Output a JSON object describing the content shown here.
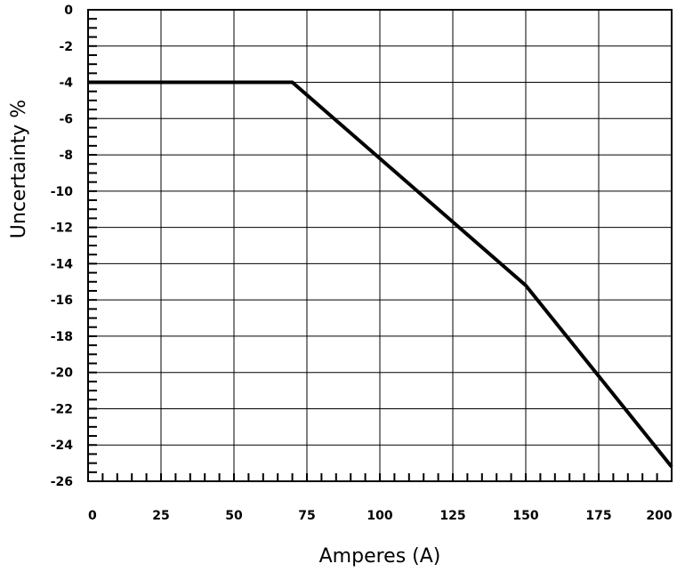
{
  "chart_data": {
    "type": "line",
    "xlabel": "Amperes (A)",
    "ylabel": "Uncertainty %",
    "xlim": [
      0,
      200
    ],
    "ylim": [
      -26,
      0
    ],
    "xticks": [
      0,
      25,
      50,
      75,
      100,
      125,
      150,
      175,
      200
    ],
    "yticks": [
      0,
      -2,
      -4,
      -6,
      -8,
      -10,
      -12,
      -14,
      -16,
      -18,
      -20,
      -22,
      -24,
      -26
    ],
    "xtick_labels": [
      "0",
      "25",
      "50",
      "75",
      "100",
      "125",
      "150",
      "175",
      "200"
    ],
    "ytick_labels": [
      "0",
      "-2",
      "-4",
      "-6",
      "-8",
      "-10",
      "-12",
      "-14",
      "-16",
      "-18",
      "-20",
      "-22",
      "-24",
      "-26"
    ],
    "grid": true,
    "series": [
      {
        "x": [
          0,
          70,
          150,
          200
        ],
        "y": [
          -4,
          -4,
          -15.2,
          -25.2
        ]
      }
    ]
  }
}
